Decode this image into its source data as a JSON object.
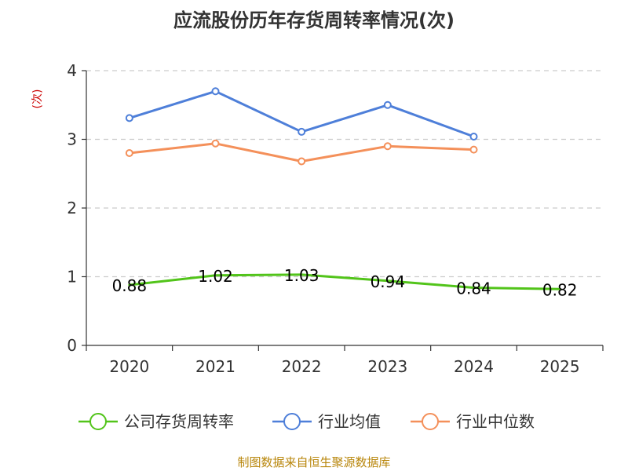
{
  "chart_data": {
    "type": "line",
    "title": "应流股份历年存货周转率情况(次)",
    "ylabel": "(次)",
    "xlabel": "",
    "categories": [
      "2020",
      "2021",
      "2022",
      "2023",
      "2024",
      "2025"
    ],
    "ylim": [
      0,
      4
    ],
    "yticks": [
      0,
      1,
      2,
      3,
      4
    ],
    "grid": true,
    "legend_position": "bottom",
    "series": [
      {
        "name": "公司存货周转率",
        "color": "#52c41a",
        "values": [
          0.88,
          1.02,
          1.03,
          0.94,
          0.84,
          0.82
        ],
        "labels": [
          "0.88",
          "1.02",
          "1.03",
          "0.94",
          "0.84",
          "0.82"
        ],
        "markers": false
      },
      {
        "name": "行业均值",
        "color": "#4e7fd9",
        "values": [
          3.31,
          3.7,
          3.11,
          3.5,
          3.04,
          null
        ],
        "markers": true
      },
      {
        "name": "行业中位数",
        "color": "#f4905a",
        "values": [
          2.8,
          2.94,
          2.68,
          2.9,
          2.85,
          null
        ],
        "markers": true
      }
    ]
  },
  "footer": "制图数据来自恒生聚源数据库"
}
